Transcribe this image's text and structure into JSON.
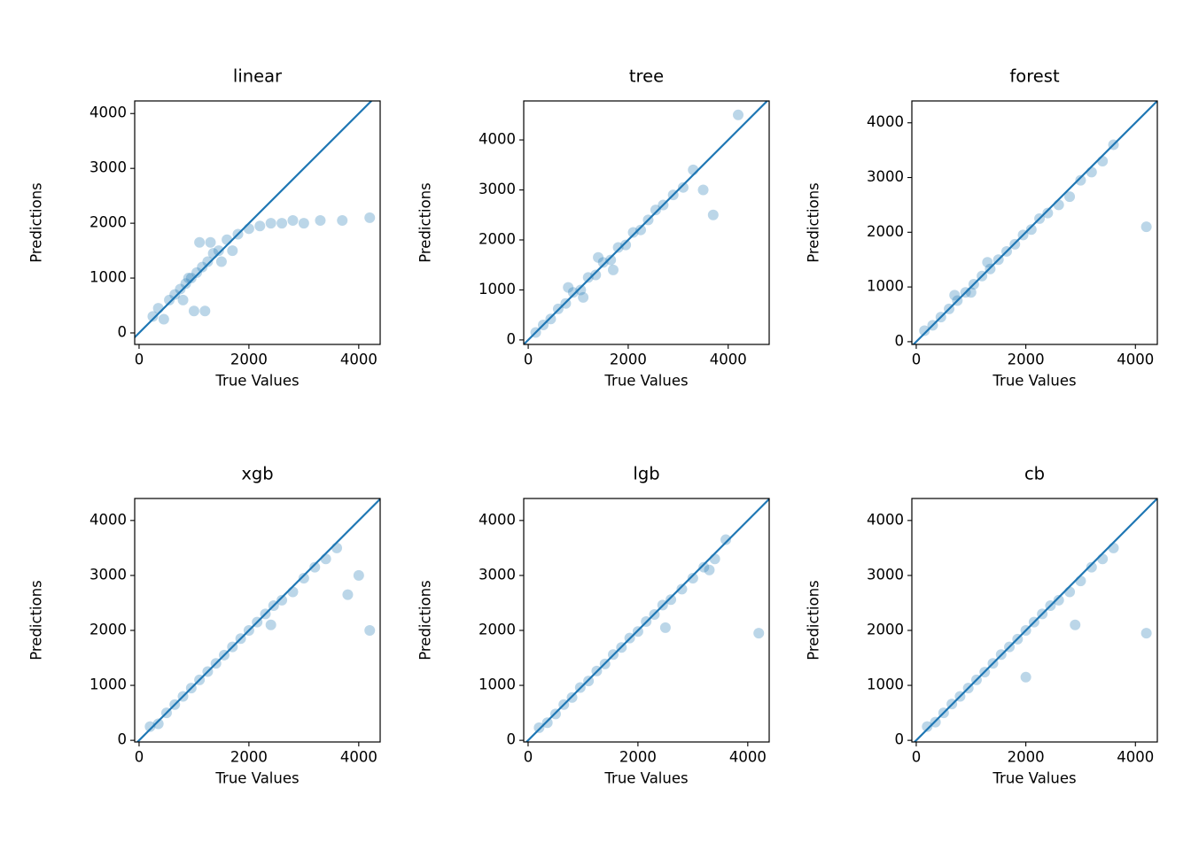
{
  "chart_data": [
    {
      "type": "scatter",
      "title": "linear",
      "xlabel": "True Values",
      "ylabel": "Predictions",
      "color": "#1f77b4",
      "alpha": 0.3,
      "x": [
        250,
        350,
        450,
        550,
        650,
        750,
        850,
        950,
        1050,
        1150,
        1250,
        1350,
        1450,
        1000,
        1200,
        1100,
        1300,
        1600,
        1800,
        2000,
        2200,
        2400,
        2600,
        2800,
        3000,
        3300,
        3700,
        4200,
        1500,
        1700,
        900,
        800
      ],
      "values": [
        300,
        450,
        250,
        600,
        700,
        800,
        900,
        1000,
        1100,
        1200,
        1300,
        1450,
        1500,
        400,
        400,
        1650,
        1650,
        1700,
        1800,
        1900,
        1950,
        2000,
        2000,
        2050,
        2000,
        2050,
        2050,
        2100,
        1300,
        1500,
        1000,
        600
      ],
      "reference_line": {
        "x": [
          -210,
          4400
        ],
        "values": [
          -210,
          4400
        ]
      },
      "xlim": [
        -80,
        4390
      ],
      "ylim": [
        -210,
        4230
      ],
      "xticks": [
        0,
        2000,
        4000
      ],
      "yticks": [
        0,
        1000,
        2000,
        3000,
        4000
      ]
    },
    {
      "type": "scatter",
      "title": "tree",
      "xlabel": "True Values",
      "ylabel": "Predictions",
      "color": "#1f77b4",
      "alpha": 0.3,
      "x": [
        150,
        300,
        450,
        600,
        750,
        900,
        1050,
        1200,
        1350,
        1500,
        1650,
        1800,
        1950,
        2100,
        2250,
        2400,
        2550,
        2700,
        2900,
        3100,
        3300,
        3500,
        3700,
        4200,
        800,
        1100,
        1400,
        1700
      ],
      "values": [
        150,
        300,
        420,
        620,
        730,
        950,
        1000,
        1250,
        1300,
        1550,
        1600,
        1850,
        1900,
        2150,
        2200,
        2400,
        2600,
        2700,
        2900,
        3050,
        3400,
        3000,
        2500,
        4500,
        1050,
        850,
        1650,
        1400
      ],
      "reference_line": {
        "x": [
          -90,
          4820
        ],
        "values": [
          -90,
          4820
        ]
      },
      "xlim": [
        -90,
        4820
      ],
      "ylim": [
        -90,
        4780
      ],
      "xticks": [
        0,
        2000,
        4000
      ],
      "yticks": [
        0,
        1000,
        2000,
        3000,
        4000
      ]
    },
    {
      "type": "scatter",
      "title": "forest",
      "xlabel": "True Values",
      "ylabel": "Predictions",
      "color": "#1f77b4",
      "alpha": 0.3,
      "x": [
        150,
        300,
        450,
        600,
        750,
        900,
        1050,
        1200,
        1350,
        1500,
        1650,
        1800,
        1950,
        2100,
        2250,
        2400,
        2600,
        2800,
        3000,
        3200,
        3400,
        3600,
        4200,
        700,
        1000,
        1300
      ],
      "values": [
        200,
        300,
        450,
        600,
        750,
        900,
        1050,
        1200,
        1330,
        1500,
        1650,
        1780,
        1950,
        2050,
        2250,
        2350,
        2500,
        2650,
        2950,
        3100,
        3300,
        3600,
        2100,
        850,
        900,
        1450
      ],
      "reference_line": {
        "x": [
          -80,
          4400
        ],
        "values": [
          -80,
          4400
        ]
      },
      "xlim": [
        -80,
        4400
      ],
      "ylim": [
        -50,
        4400
      ],
      "xticks": [
        0,
        2000,
        4000
      ],
      "yticks": [
        0,
        1000,
        2000,
        3000,
        4000
      ]
    },
    {
      "type": "scatter",
      "title": "xgb",
      "xlabel": "True Values",
      "ylabel": "Predictions",
      "color": "#1f77b4",
      "alpha": 0.3,
      "x": [
        200,
        350,
        500,
        650,
        800,
        950,
        1100,
        1250,
        1400,
        1550,
        1700,
        1850,
        2000,
        2150,
        2300,
        2450,
        2600,
        2800,
        3000,
        3200,
        3400,
        3600,
        4000,
        2400,
        3800,
        4200
      ],
      "values": [
        250,
        300,
        500,
        650,
        800,
        950,
        1100,
        1250,
        1400,
        1550,
        1700,
        1850,
        2000,
        2150,
        2300,
        2450,
        2550,
        2700,
        2950,
        3150,
        3300,
        3500,
        3000,
        2100,
        2650,
        2000
      ],
      "reference_line": {
        "x": [
          -80,
          4400
        ],
        "values": [
          -80,
          4400
        ]
      },
      "xlim": [
        -80,
        4390
      ],
      "ylim": [
        -30,
        4400
      ],
      "xticks": [
        0,
        2000,
        4000
      ],
      "yticks": [
        0,
        1000,
        2000,
        3000,
        4000
      ]
    },
    {
      "type": "scatter",
      "title": "lgb",
      "xlabel": "True Values",
      "ylabel": "Predictions",
      "color": "#1f77b4",
      "alpha": 0.3,
      "x": [
        200,
        350,
        500,
        650,
        800,
        950,
        1100,
        1250,
        1400,
        1550,
        1700,
        1850,
        2000,
        2150,
        2300,
        2450,
        2600,
        2800,
        3000,
        3200,
        3400,
        3600,
        3300,
        2500,
        4200
      ],
      "values": [
        230,
        320,
        480,
        650,
        780,
        960,
        1080,
        1260,
        1390,
        1560,
        1690,
        1860,
        1980,
        2160,
        2290,
        2460,
        2560,
        2750,
        2950,
        3150,
        3300,
        3650,
        3100,
        2050,
        1950
      ],
      "reference_line": {
        "x": [
          -80,
          4400
        ],
        "values": [
          -80,
          4400
        ]
      },
      "xlim": [
        -80,
        4390
      ],
      "ylim": [
        -30,
        4400
      ],
      "xticks": [
        0,
        2000,
        4000
      ],
      "yticks": [
        0,
        1000,
        2000,
        3000,
        4000
      ]
    },
    {
      "type": "scatter",
      "title": "cb",
      "xlabel": "True Values",
      "ylabel": "Predictions",
      "color": "#1f77b4",
      "alpha": 0.3,
      "x": [
        200,
        350,
        500,
        650,
        800,
        950,
        1100,
        1250,
        1400,
        1550,
        1700,
        1850,
        2000,
        2150,
        2300,
        2450,
        2600,
        2800,
        3000,
        3200,
        3400,
        3600,
        2900,
        2000,
        4200
      ],
      "values": [
        250,
        330,
        500,
        660,
        800,
        950,
        1100,
        1240,
        1400,
        1560,
        1700,
        1840,
        2000,
        2150,
        2300,
        2450,
        2550,
        2700,
        2900,
        3150,
        3300,
        3500,
        2100,
        1150,
        1950
      ],
      "reference_line": {
        "x": [
          -80,
          4400
        ],
        "values": [
          -80,
          4400
        ]
      },
      "xlim": [
        -80,
        4400
      ],
      "ylim": [
        -30,
        4400
      ],
      "xticks": [
        0,
        2000,
        4000
      ],
      "yticks": [
        0,
        1000,
        2000,
        3000,
        4000
      ]
    }
  ]
}
